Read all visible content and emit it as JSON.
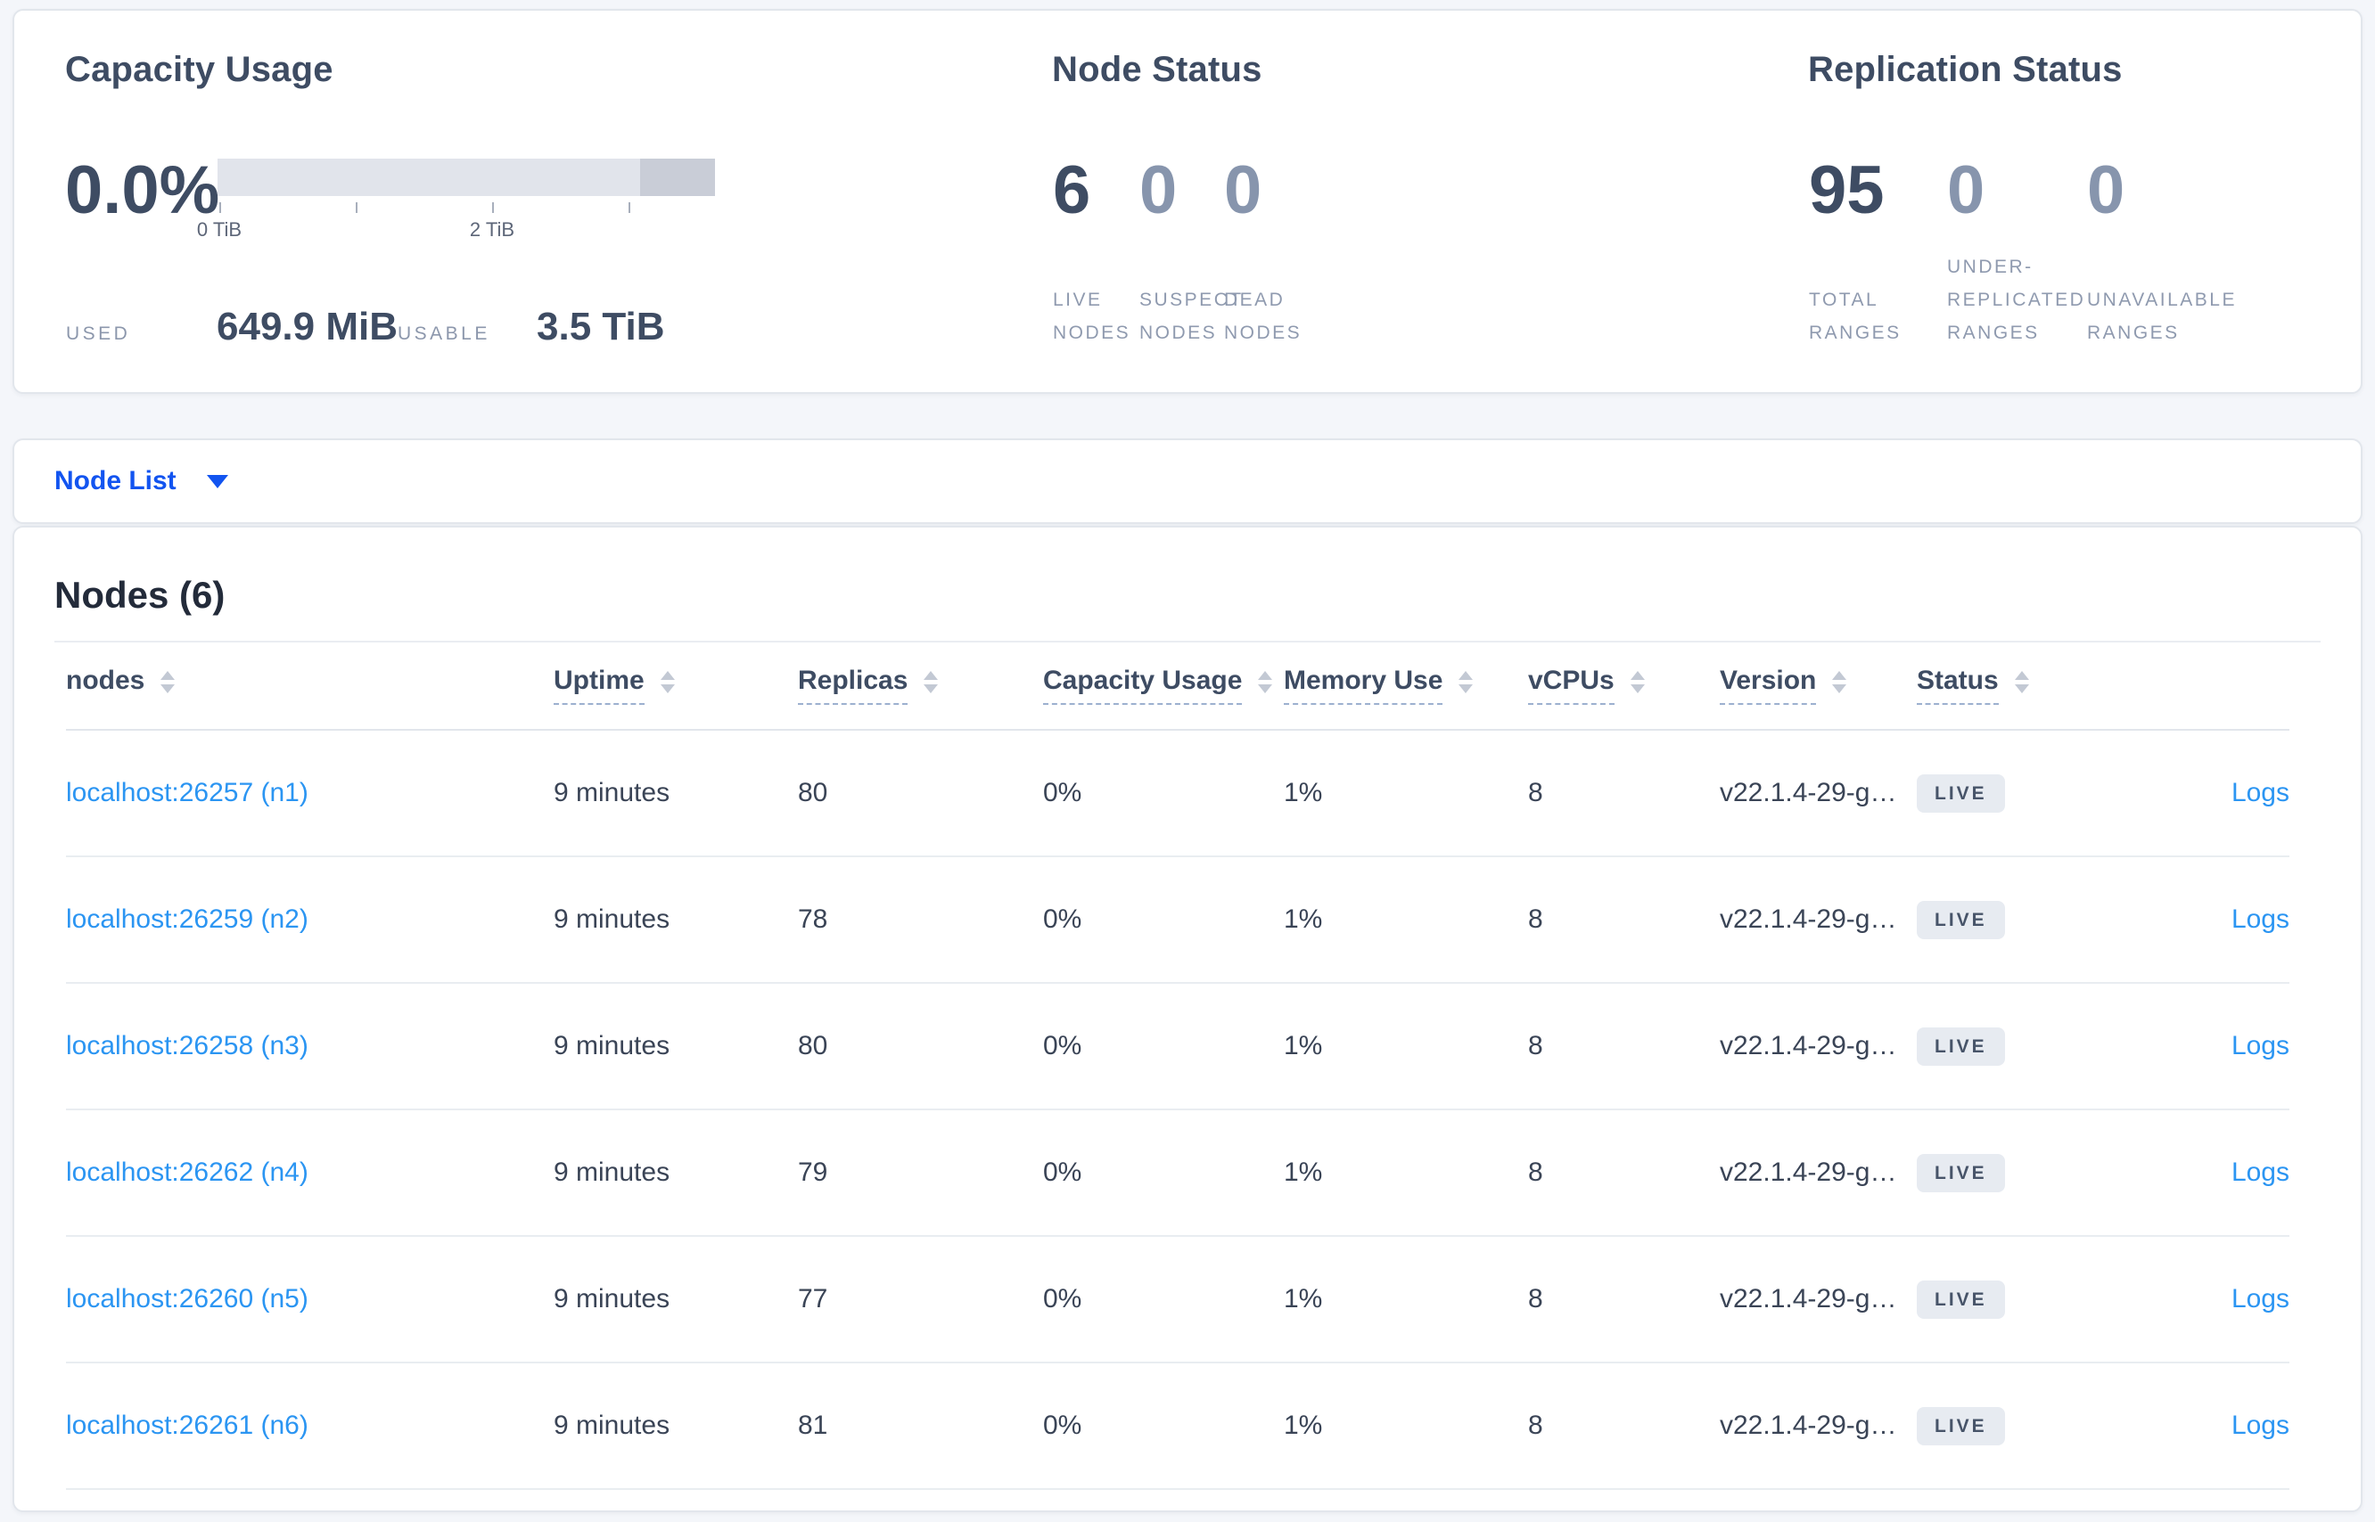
{
  "capacity": {
    "title": "Capacity Usage",
    "percent": "0.0%",
    "tick_label_1": "0 TiB",
    "tick_label_2": "2 TiB",
    "used_label": "USED",
    "used_value": "649.9 MiB",
    "usable_label": "USABLE",
    "usable_value": "3.5 TiB"
  },
  "node_status": {
    "title": "Node Status",
    "stats": [
      {
        "value": "6",
        "label_lines": [
          "LIVE",
          "NODES"
        ],
        "muted": false
      },
      {
        "value": "0",
        "label_lines": [
          "SUSPECT",
          "NODES"
        ],
        "muted": true
      },
      {
        "value": "0",
        "label_lines": [
          "DEAD",
          "NODES"
        ],
        "muted": true
      }
    ]
  },
  "replication": {
    "title": "Replication Status",
    "stats": [
      {
        "value": "95",
        "label_lines": [
          "TOTAL",
          "RANGES"
        ],
        "muted": false
      },
      {
        "value": "0",
        "label_lines": [
          "UNDER-",
          "REPLICATED",
          "RANGES"
        ],
        "muted": true
      },
      {
        "value": "0",
        "label_lines": [
          "UNAVAILABLE",
          "RANGES"
        ],
        "muted": true
      }
    ]
  },
  "node_list": {
    "label": "Node List"
  },
  "nodes_table": {
    "title": "Nodes (6)",
    "logs_label": "Logs",
    "columns": [
      {
        "label": "nodes",
        "dashed": false
      },
      {
        "label": "Uptime",
        "dashed": true
      },
      {
        "label": "Replicas",
        "dashed": true
      },
      {
        "label": "Capacity Usage",
        "dashed": true
      },
      {
        "label": "Memory Use",
        "dashed": true
      },
      {
        "label": "vCPUs",
        "dashed": true
      },
      {
        "label": "Version",
        "dashed": true
      },
      {
        "label": "Status",
        "dashed": true
      }
    ],
    "rows": [
      {
        "address": "localhost:26257 (n1)",
        "uptime": "9 minutes",
        "replicas": "80",
        "capacity": "0%",
        "memory": "1%",
        "vcpus": "8",
        "version": "v22.1.4-29-g…",
        "status": "LIVE"
      },
      {
        "address": "localhost:26259 (n2)",
        "uptime": "9 minutes",
        "replicas": "78",
        "capacity": "0%",
        "memory": "1%",
        "vcpus": "8",
        "version": "v22.1.4-29-g…",
        "status": "LIVE"
      },
      {
        "address": "localhost:26258 (n3)",
        "uptime": "9 minutes",
        "replicas": "80",
        "capacity": "0%",
        "memory": "1%",
        "vcpus": "8",
        "version": "v22.1.4-29-g…",
        "status": "LIVE"
      },
      {
        "address": "localhost:26262 (n4)",
        "uptime": "9 minutes",
        "replicas": "79",
        "capacity": "0%",
        "memory": "1%",
        "vcpus": "8",
        "version": "v22.1.4-29-g…",
        "status": "LIVE"
      },
      {
        "address": "localhost:26260 (n5)",
        "uptime": "9 minutes",
        "replicas": "77",
        "capacity": "0%",
        "memory": "1%",
        "vcpus": "8",
        "version": "v22.1.4-29-g…",
        "status": "LIVE"
      },
      {
        "address": "localhost:26261 (n6)",
        "uptime": "9 minutes",
        "replicas": "81",
        "capacity": "0%",
        "memory": "1%",
        "vcpus": "8",
        "version": "v22.1.4-29-g…",
        "status": "LIVE"
      }
    ]
  },
  "colors": {
    "accent_blue": "#1254f0",
    "link_blue": "#2b95f2",
    "dark_slate": "#3e4c63",
    "muted_slate": "#8f9aaf",
    "badge_bg": "#e7ebf1"
  }
}
